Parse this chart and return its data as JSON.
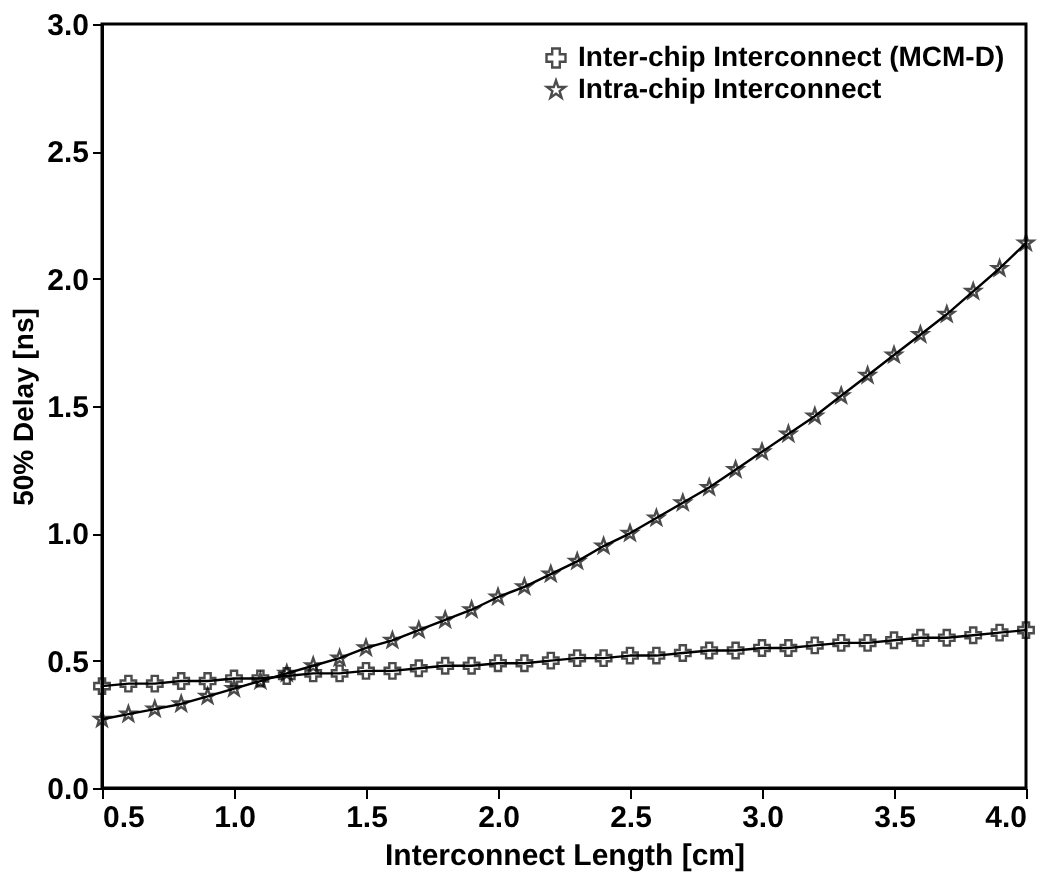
{
  "chart_data": {
    "type": "line",
    "xlabel": "Interconnect Length [cm]",
    "ylabel": "50% Delay [ns]",
    "x": [
      0.5,
      0.6,
      0.7,
      0.8,
      0.9,
      1.0,
      1.1,
      1.2,
      1.3,
      1.4,
      1.5,
      1.6,
      1.7,
      1.8,
      1.9,
      2.0,
      2.1,
      2.2,
      2.3,
      2.4,
      2.5,
      2.6,
      2.7,
      2.8,
      2.9,
      3.0,
      3.1,
      3.2,
      3.3,
      3.4,
      3.5,
      3.6,
      3.7,
      3.8,
      3.9,
      4.0
    ],
    "series": [
      {
        "name": "Inter-chip Interconnect (MCM-D)",
        "color": "#000000",
        "marker": "cross",
        "values": [
          0.4,
          0.41,
          0.41,
          0.42,
          0.42,
          0.43,
          0.43,
          0.44,
          0.45,
          0.45,
          0.46,
          0.46,
          0.47,
          0.48,
          0.48,
          0.49,
          0.49,
          0.5,
          0.51,
          0.51,
          0.52,
          0.52,
          0.53,
          0.54,
          0.54,
          0.55,
          0.55,
          0.56,
          0.57,
          0.57,
          0.58,
          0.59,
          0.59,
          0.6,
          0.61,
          0.62
        ]
      },
      {
        "name": "Intra-chip Interconnect",
        "color": "#000000",
        "marker": "star",
        "values": [
          0.27,
          0.29,
          0.31,
          0.33,
          0.36,
          0.39,
          0.42,
          0.45,
          0.48,
          0.51,
          0.55,
          0.58,
          0.62,
          0.66,
          0.7,
          0.75,
          0.79,
          0.84,
          0.89,
          0.95,
          1.0,
          1.06,
          1.12,
          1.18,
          1.25,
          1.32,
          1.39,
          1.46,
          1.54,
          1.62,
          1.7,
          1.78,
          1.86,
          1.95,
          2.04,
          2.14
        ]
      }
    ],
    "xlim": [
      0.5,
      4.0
    ],
    "xticks": [
      0.5,
      {
        "value": 1,
        "label": "1.0"
      },
      1.5,
      {
        "value": 2,
        "label": "2.0"
      },
      2.5,
      {
        "value": 3,
        "label": "3.0"
      },
      3.5,
      {
        "value": 4,
        "label": "4.0"
      }
    ],
    "ylim": [
      0.0,
      3.0
    ],
    "yticks": [
      {
        "value": 0,
        "label": "0.0"
      },
      0.5,
      {
        "value": 1,
        "label": "1.0"
      },
      1.5,
      {
        "value": 2,
        "label": "2.0"
      },
      2.5,
      {
        "value": 3,
        "label": "3.0"
      }
    ],
    "grid": false,
    "legend": "top right",
    "line_style": "solid"
  }
}
